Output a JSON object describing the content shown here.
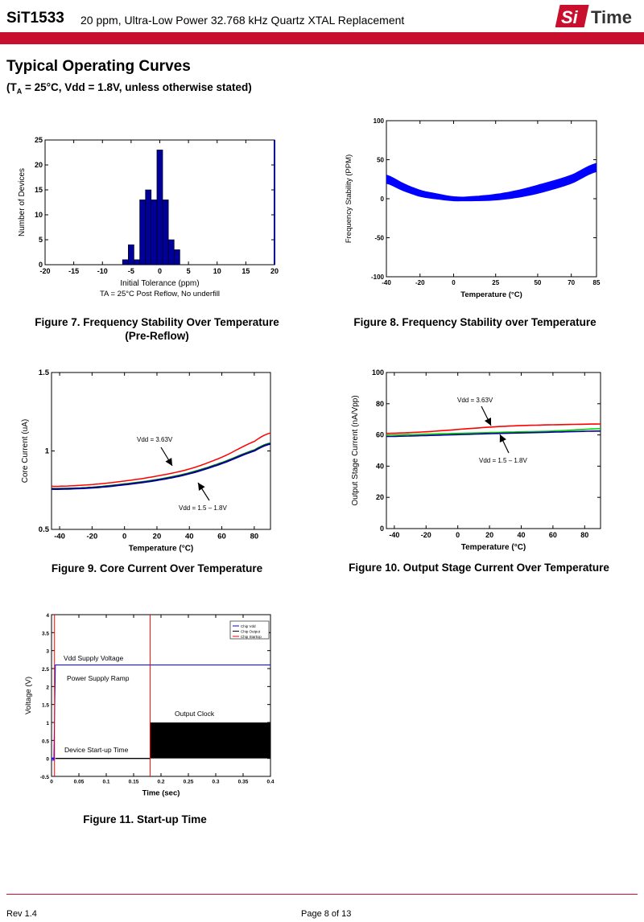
{
  "header": {
    "part_number": "SiT1533",
    "subtitle": "20 ppm, Ultra-Low Power 32.768 kHz Quartz XTAL Replacement",
    "logo_si": "Si",
    "logo_time": "Time",
    "brand_color": "#c8102e"
  },
  "section": {
    "title": "Typical Operating Curves",
    "conditions_prefix": "(T",
    "conditions_sub": "A",
    "conditions_suffix": " = 25°C, Vdd = 1.8V, unless otherwise stated)"
  },
  "captions": {
    "fig7_line1": "Figure 7. Frequency Stability Over Temperature",
    "fig7_line2": "(Pre-Reflow)",
    "fig8": "Figure 8. Frequency Stability over Temperature",
    "fig9": "Figure 9. Core Current Over Temperature",
    "fig10": "Figure 10. Output Stage Current Over Temperature",
    "fig11": "Figure 11. Start-up Time"
  },
  "footer": {
    "revision": "Rev 1.4",
    "page": "Page 8 of 13"
  },
  "chart_data": [
    {
      "id": "fig7",
      "type": "bar",
      "xlabel": "Initial Tolerance (ppm)",
      "note": "TA = 25°C Post Reflow, No underfill",
      "ylabel": "Number of Devices",
      "xlim": [
        -20,
        20
      ],
      "ylim": [
        0,
        25
      ],
      "xticks": [
        -20,
        -15,
        -10,
        -5,
        0,
        5,
        10,
        15,
        20
      ],
      "yticks": [
        0,
        5,
        10,
        15,
        20,
        25
      ],
      "bin_width": 1,
      "bin_centers": [
        -6,
        -5,
        -4,
        -3,
        -2,
        -1,
        0,
        1,
        2,
        3
      ],
      "values": [
        1,
        4,
        1,
        13,
        15,
        13,
        23,
        13,
        5,
        3
      ],
      "color": "#000099"
    },
    {
      "id": "fig8",
      "type": "line",
      "xlabel": "Temperature (°C)",
      "ylabel": "Frequency Stability (PPM)",
      "xlim": [
        -40,
        85
      ],
      "ylim": [
        -100,
        100
      ],
      "xticks": [
        -40,
        -20,
        0,
        25,
        50,
        70,
        85
      ],
      "yticks": [
        -100,
        -50,
        0,
        50,
        100
      ],
      "series_note": "many overlapping device curves",
      "x": [
        -40,
        -30,
        -20,
        -10,
        0,
        10,
        25,
        40,
        55,
        70,
        85
      ],
      "center": [
        25,
        15,
        7,
        3,
        0,
        0,
        2,
        7,
        15,
        25,
        40
      ],
      "spread": 5,
      "color": "#0000ff"
    },
    {
      "id": "fig9",
      "type": "line",
      "xlabel": "Temperature (°C)",
      "ylabel": "Core Current (uA)",
      "xlim": [
        -45,
        90
      ],
      "ylim": [
        0.5,
        1.5
      ],
      "xticks": [
        -40,
        -20,
        0,
        20,
        40,
        60,
        80
      ],
      "yticks": [
        0.5,
        1,
        1.5
      ],
      "x": [
        -45,
        -40,
        -20,
        0,
        20,
        40,
        60,
        80,
        90
      ],
      "series": [
        {
          "values": [
            0.775,
            0.775,
            0.786,
            0.808,
            0.84,
            0.885,
            0.96,
            1.06,
            1.115
          ],
          "color": "#ff0000"
        },
        {
          "values": [
            0.76,
            0.76,
            0.768,
            0.789,
            0.817,
            0.86,
            0.925,
            1.005,
            1.05
          ],
          "color": "#008000"
        },
        {
          "values": [
            0.757,
            0.757,
            0.765,
            0.785,
            0.813,
            0.855,
            0.92,
            1.0,
            1.045
          ],
          "color": "#000099"
        }
      ],
      "annotations": [
        "Vdd = 3.63V",
        "Vdd = 1.5 – 1.8V"
      ]
    },
    {
      "id": "fig10",
      "type": "line",
      "xlabel": "Temperature (°C)",
      "ylabel": "Output Stage Current (nA/Vpp)",
      "xlim": [
        -45,
        90
      ],
      "ylim": [
        0,
        100
      ],
      "xticks": [
        -40,
        -20,
        0,
        20,
        40,
        60,
        80
      ],
      "yticks": [
        0,
        20,
        40,
        60,
        80,
        100
      ],
      "x": [
        -45,
        -20,
        0,
        20,
        40,
        60,
        90
      ],
      "series": [
        {
          "values": [
            61,
            62,
            63.5,
            65,
            66,
            66.5,
            67
          ],
          "color": "#ff0000"
        },
        {
          "values": [
            60,
            60.5,
            61,
            61.5,
            62,
            62.5,
            64
          ],
          "color": "#00cc00"
        },
        {
          "values": [
            59,
            59.6,
            60.2,
            60.8,
            61.3,
            61.8,
            62.5
          ],
          "color": "#000099"
        }
      ],
      "annotations": [
        "Vdd = 3.63V",
        "Vdd = 1.5 – 1.8V"
      ]
    },
    {
      "id": "fig11",
      "type": "line",
      "xlabel": "Time (sec)",
      "ylabel": "Voltage (V)",
      "xlim": [
        0,
        0.4
      ],
      "ylim": [
        -0.5,
        4
      ],
      "xticks": [
        0,
        0.05,
        0.1,
        0.15,
        0.2,
        0.25,
        0.3,
        0.35,
        0.4
      ],
      "yticks": [
        -0.5,
        0,
        0.5,
        1,
        1.5,
        2,
        2.5,
        3,
        3.5,
        4
      ],
      "legend": [
        "Chip Vdd",
        "Chip Output",
        "Chip StartUp"
      ],
      "legend_position": "top-right",
      "vdd_level": 2.6,
      "clock_high": 1.0,
      "startup_time": 0.18,
      "ramp_time": 0.007,
      "annotations": [
        "Vdd Supply Voltage",
        "Power Supply Ramp",
        "Output Clock",
        "Device Start-up Time"
      ]
    }
  ]
}
